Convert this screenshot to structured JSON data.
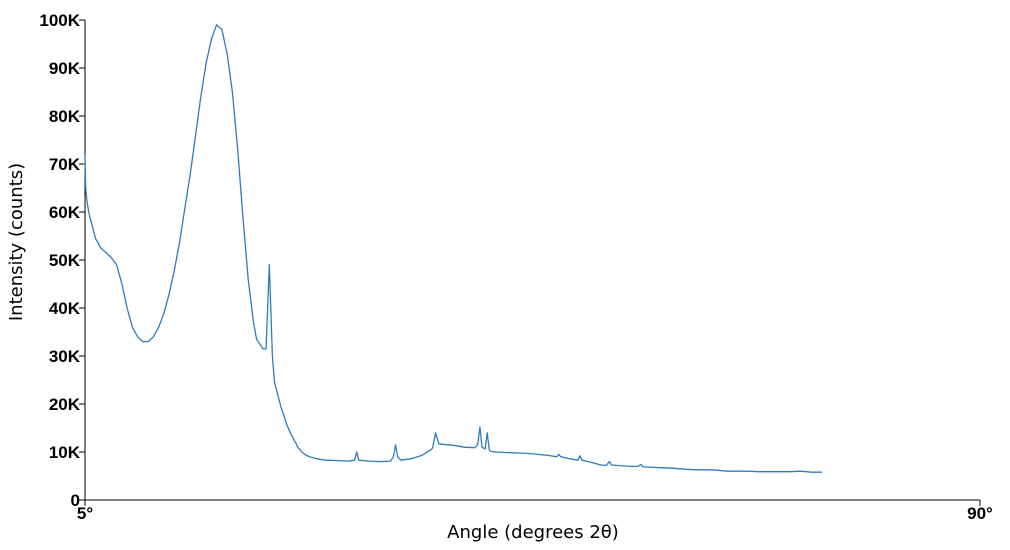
{
  "chart_data": {
    "type": "line",
    "title": "",
    "xlabel": "Angle (degrees 2θ)",
    "ylabel": "Intensity (counts)",
    "xlim": [
      5,
      90
    ],
    "ylim": [
      0,
      100000
    ],
    "x_ticks": [
      {
        "value": 5,
        "label": "5°"
      },
      {
        "value": 90,
        "label": "90°"
      }
    ],
    "y_ticks": [
      {
        "value": 0,
        "label": "0"
      },
      {
        "value": 10000,
        "label": "10K"
      },
      {
        "value": 20000,
        "label": "20K"
      },
      {
        "value": 30000,
        "label": "30K"
      },
      {
        "value": 40000,
        "label": "40K"
      },
      {
        "value": 50000,
        "label": "50K"
      },
      {
        "value": 60000,
        "label": "60K"
      },
      {
        "value": 70000,
        "label": "70K"
      },
      {
        "value": 80000,
        "label": "80K"
      },
      {
        "value": 90000,
        "label": "90K"
      },
      {
        "value": 100000,
        "label": "100K"
      }
    ],
    "grid": false,
    "colors": {
      "series": "#2f7bbd",
      "axis": "#000000"
    },
    "series": [
      {
        "x": [
          5.0,
          5.05,
          5.1,
          5.2,
          5.4,
          5.7,
          6.0,
          6.5,
          7.0,
          7.5,
          8.0,
          8.5,
          9.0,
          9.5,
          10.0,
          10.5,
          11.0,
          11.5,
          12.0,
          12.5,
          13.0,
          13.5,
          14.0,
          14.5,
          15.0,
          15.5,
          16.0,
          16.5,
          17.0,
          17.5,
          18.0,
          18.5,
          19.0,
          19.5,
          20.0,
          20.5,
          21.0,
          21.3,
          21.6,
          21.9,
          22.2,
          22.5,
          22.8,
          23.0,
          23.3,
          23.6,
          23.9,
          24.2,
          24.5,
          24.8,
          24.9,
          25.0,
          25.1,
          25.2,
          25.4,
          25.6,
          26.0,
          26.5,
          27.0,
          27.5,
          28.0,
          29.0,
          30.0,
          30.6,
          30.8,
          31.0,
          32.0,
          33.0,
          34.0,
          34.3,
          34.5,
          34.7,
          35.0,
          36.0,
          37.0,
          37.8,
          38.0,
          38.3,
          38.6,
          39.0,
          40.0,
          41.0,
          42.0,
          42.3,
          42.5,
          42.7,
          43.0,
          43.2,
          43.4,
          43.6,
          44.0,
          45.0,
          46.0,
          47.0,
          48.0,
          49.0,
          49.8,
          50.0,
          50.2,
          51.0,
          51.8,
          52.0,
          52.2,
          53.0,
          54.0,
          54.5,
          54.8,
          55.0,
          56.0,
          57.0,
          57.5,
          57.8,
          58.0,
          59.0,
          60.0,
          61.0,
          61.5,
          62.0,
          63.0,
          64.0,
          64.5,
          65.0,
          65.5,
          66.0,
          67.0,
          68.0,
          69.0,
          70.0,
          71.0,
          72.0,
          73.0,
          74.0,
          75.0
        ],
        "values": [
          72000,
          66000,
          64000,
          62000,
          59500,
          57000,
          54500,
          52500,
          51500,
          50500,
          49000,
          45000,
          40000,
          36000,
          34000,
          33000,
          33000,
          34000,
          36000,
          39000,
          43000,
          48000,
          54000,
          61000,
          68000,
          76000,
          84000,
          91000,
          96000,
          99000,
          98000,
          93000,
          85000,
          73000,
          59000,
          46000,
          37000,
          33500,
          32500,
          31500,
          31500,
          49000,
          30000,
          24500,
          22000,
          19500,
          17500,
          15500,
          14000,
          12800,
          12300,
          12000,
          11500,
          11000,
          10500,
          10000,
          9300,
          8900,
          8600,
          8400,
          8300,
          8200,
          8100,
          8300,
          10000,
          8300,
          8100,
          8000,
          8100,
          9000,
          11500,
          9000,
          8300,
          8600,
          9300,
          10400,
          10800,
          14000,
          11700,
          11600,
          11400,
          11000,
          10900,
          11500,
          15200,
          11000,
          10600,
          14000,
          10400,
          10100,
          10000,
          9900,
          9800,
          9700,
          9500,
          9300,
          9000,
          9500,
          9000,
          8600,
          8300,
          9200,
          8300,
          7900,
          7300,
          7200,
          8000,
          7300,
          7100,
          7000,
          7000,
          7400,
          6900,
          6800,
          6700,
          6600,
          6500,
          6400,
          6300,
          6300,
          6300,
          6200,
          6100,
          6000,
          6000,
          6000,
          5900,
          5900,
          5900,
          5900,
          6000,
          5800,
          5800
        ]
      }
    ]
  }
}
